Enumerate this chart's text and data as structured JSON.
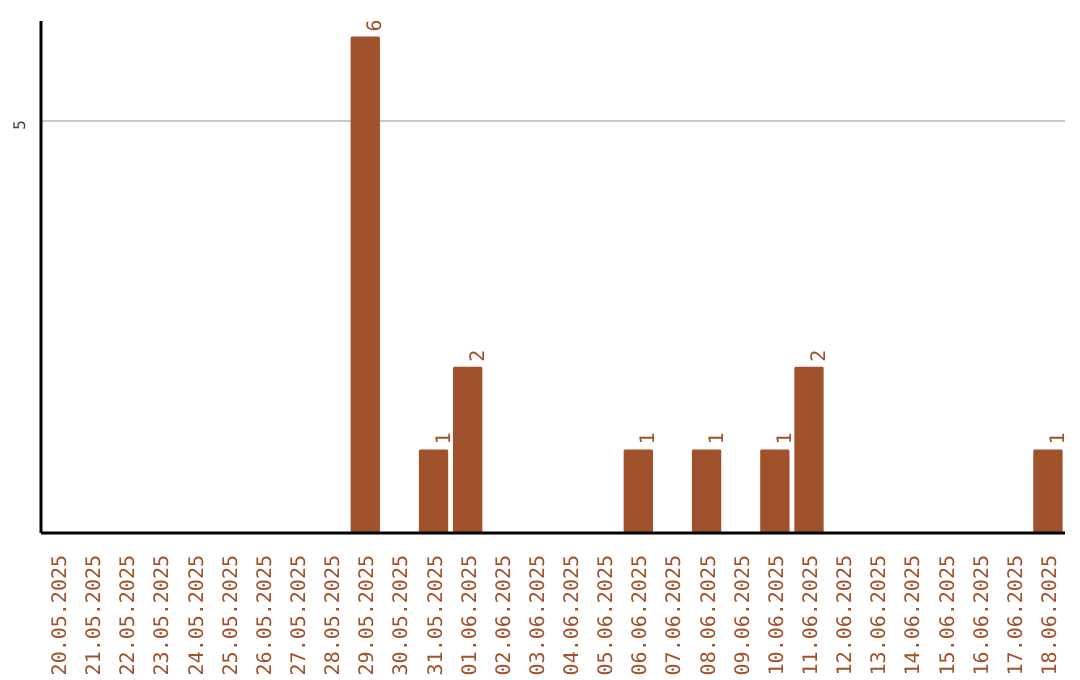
{
  "chart_data": {
    "type": "bar",
    "categories": [
      "20.05.2025",
      "21.05.2025",
      "22.05.2025",
      "23.05.2025",
      "24.05.2025",
      "25.05.2025",
      "26.05.2025",
      "27.05.2025",
      "28.05.2025",
      "29.05.2025",
      "30.05.2025",
      "31.05.2025",
      "01.06.2025",
      "02.06.2025",
      "03.06.2025",
      "04.06.2025",
      "05.06.2025",
      "06.06.2025",
      "07.06.2025",
      "08.06.2025",
      "09.06.2025",
      "10.06.2025",
      "11.06.2025",
      "12.06.2025",
      "13.06.2025",
      "14.06.2025",
      "15.06.2025",
      "16.06.2025",
      "17.06.2025",
      "18.06.2025"
    ],
    "values": [
      0,
      0,
      0,
      0,
      0,
      0,
      0,
      0,
      0,
      6,
      0,
      1,
      2,
      0,
      0,
      0,
      0,
      1,
      0,
      1,
      0,
      1,
      2,
      0,
      0,
      0,
      0,
      0,
      0,
      1
    ],
    "value_labels": [
      null,
      null,
      null,
      null,
      null,
      null,
      null,
      null,
      null,
      "6",
      null,
      "1",
      "2",
      null,
      null,
      null,
      null,
      "1",
      null,
      "1",
      null,
      "1",
      "2",
      null,
      null,
      null,
      null,
      null,
      null,
      "1"
    ],
    "color": "#a0522d",
    "ylim": [
      0,
      6.2
    ],
    "yticks": [
      5
    ],
    "grid": "y"
  }
}
